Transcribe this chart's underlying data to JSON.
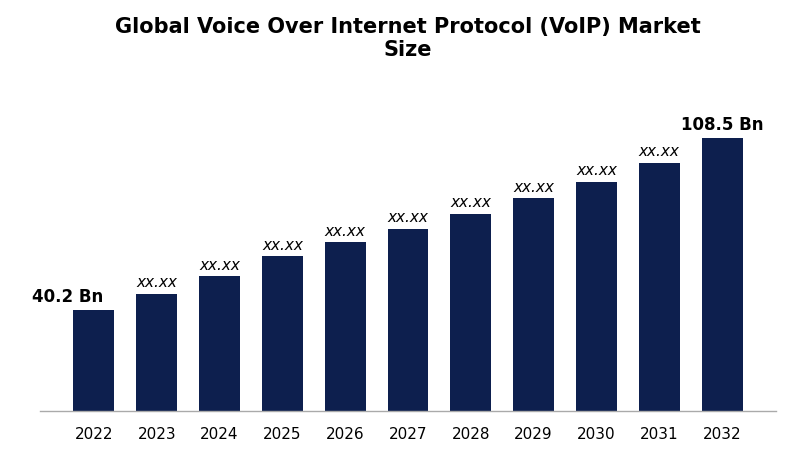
{
  "title": "Global Voice Over Internet Protocol (VoIP) Market\nSize",
  "years": [
    2022,
    2023,
    2024,
    2025,
    2026,
    2027,
    2028,
    2029,
    2030,
    2031,
    2032
  ],
  "values": [
    40.2,
    46.5,
    53.5,
    61.5,
    67.0,
    72.5,
    78.5,
    84.5,
    91.0,
    98.5,
    108.5
  ],
  "bar_color": "#0d1f4e",
  "background_color": "#ffffff",
  "labels": [
    "40.2 Bn",
    "xx.xx",
    "xx.xx",
    "xx.xx",
    "xx.xx",
    "xx.xx",
    "xx.xx",
    "xx.xx",
    "xx.xx",
    "xx.xx",
    "108.5 Bn"
  ],
  "title_fontsize": 15,
  "label_fontsize": 11,
  "tick_fontsize": 11,
  "ylim": [
    0,
    130
  ],
  "bar_width": 0.65
}
